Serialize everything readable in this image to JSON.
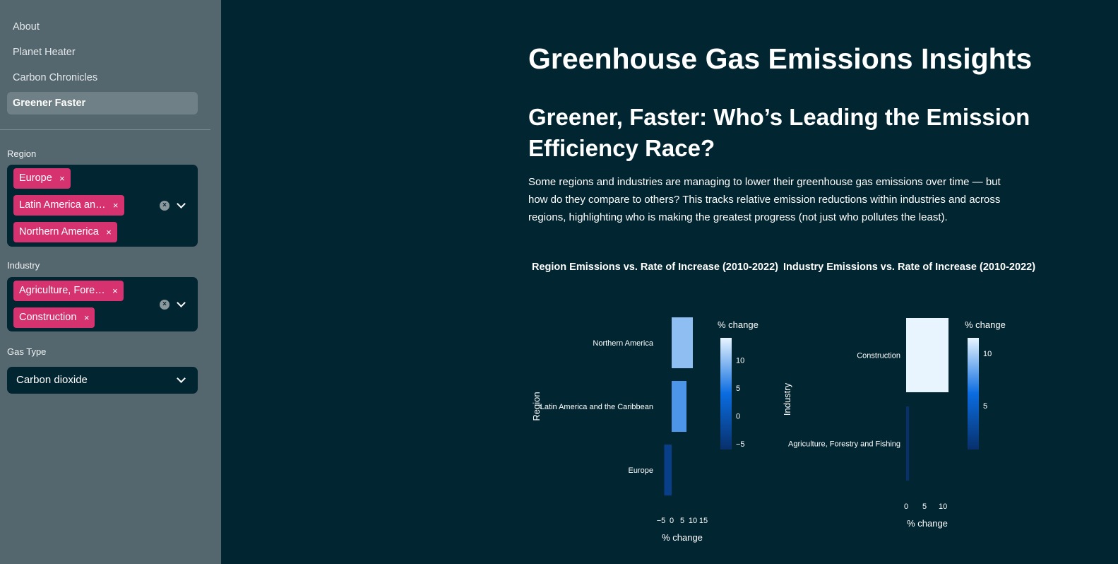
{
  "sidebar": {
    "nav": [
      {
        "label": "About",
        "active": false
      },
      {
        "label": "Planet Heater",
        "active": false
      },
      {
        "label": "Carbon Chronicles",
        "active": false
      },
      {
        "label": "Greener Faster",
        "active": true
      }
    ],
    "region": {
      "label": "Region",
      "tags": [
        "Europe",
        "Latin America an…",
        "Northern America"
      ]
    },
    "industry": {
      "label": "Industry",
      "tags": [
        "Agriculture, Fore…",
        "Construction"
      ]
    },
    "gas_type": {
      "label": "Gas Type",
      "value": "Carbon dioxide"
    },
    "tag_remove_glyph": "×",
    "clear_glyph": "×"
  },
  "main": {
    "title": "Greenhouse Gas Emissions Insights",
    "subtitle": "Greener, Faster: Who’s Leading the Emission Efficiency Race?",
    "description": "Some regions and industries are managing to lower their greenhouse gas emissions over time — but how do they compare to others? This tracks relative emission reductions within industries and across regions, highlighting who is making the greatest progress (not just who pollutes the least)."
  },
  "colors": {
    "sidebar_bg": "#55676e",
    "main_bg": "#022631",
    "tag_bg": "#d6326f",
    "colorscale_low": "#08306b",
    "colorscale_mid": "#0a6ce0",
    "colorscale_high": "#e8f5ff"
  },
  "chart_data": [
    {
      "type": "bar",
      "orientation": "horizontal",
      "title": "Region Emissions vs. Rate of Increase (2010-2022)",
      "xlabel": "% change",
      "ylabel": "Region",
      "categories": [
        "Northern America",
        "Latin America and the Caribbean",
        "Europe"
      ],
      "values": [
        10,
        7,
        -3.5
      ],
      "bar_thickness_relative": [
        1.0,
        1.0,
        1.0
      ],
      "xlim": [
        -6,
        16
      ],
      "xticks": [
        -5,
        0,
        5,
        10,
        15
      ],
      "xtick_labels": [
        "−5",
        "0",
        "5",
        "10",
        "15"
      ],
      "colorbar": {
        "title": "% change",
        "range": [
          -6,
          14
        ],
        "ticks": [
          10,
          5,
          0,
          -5
        ],
        "tick_labels": [
          "10",
          "5",
          "0",
          "−5"
        ]
      }
    },
    {
      "type": "bar",
      "orientation": "horizontal",
      "title": "Industry Emissions vs. Rate of Increase (2010-2022)",
      "xlabel": "% change",
      "ylabel": "Industry",
      "categories": [
        "Construction",
        "Agriculture, Forestry and Fishing"
      ],
      "values": [
        11.5,
        0.8
      ],
      "xlim": [
        0,
        11.5
      ],
      "xticks": [
        0,
        5,
        10
      ],
      "xtick_labels": [
        "0",
        "5",
        "10"
      ],
      "colorbar": {
        "title": "% change",
        "range": [
          0.8,
          11.5
        ],
        "ticks": [
          10,
          5
        ],
        "tick_labels": [
          "10",
          "5"
        ]
      }
    }
  ]
}
